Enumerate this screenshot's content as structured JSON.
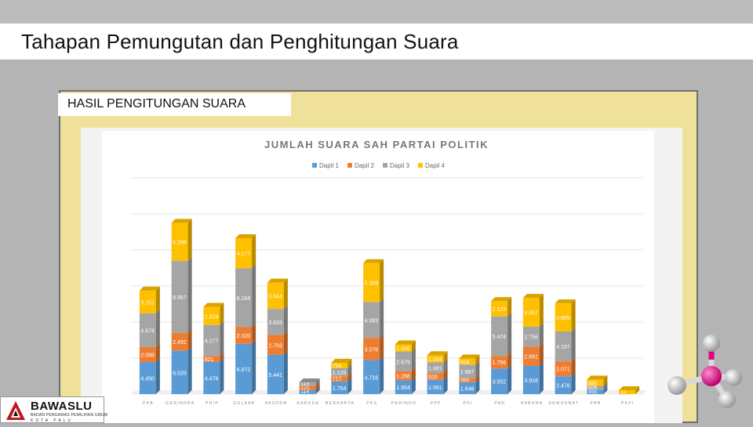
{
  "slide": {
    "title": "Tahapan Pemungutan dan Penghitungan Suara",
    "section_label": "HASIL PENGITUNGAN SUARA"
  },
  "logo": {
    "name": "BAWASLU",
    "subtitle": "BADAN PENGAWAS PEMILIHAN UMUM",
    "city": "KOTA PALU"
  },
  "colors": {
    "dapil1": "#5b9bd5",
    "dapil2": "#ed7d31",
    "dapil3": "#a5a5a5",
    "dapil4": "#ffc000",
    "panel": "#f0e19a"
  },
  "chart_data": {
    "type": "bar",
    "stacked": true,
    "style": "3d-stacked-column",
    "title": "JUMLAH SUARA SAH PARTAI POLITIK",
    "legend_position": "top",
    "grid": true,
    "categories": [
      "PKB",
      "GERINDRA",
      "PDIP",
      "GOLKAR",
      "NASDEM",
      "GARUDA",
      "BERKARYA",
      "PKS",
      "PERINDO",
      "PPP",
      "PSI",
      "PAN",
      "HANURA",
      "DEMOKRAT",
      "PBB",
      "PKPI"
    ],
    "category_labels": [
      "P K B",
      "G E R I N D R A",
      "P D I P",
      "G O L K A R",
      "N A S D E M",
      "G A R U D A",
      "B E R K A R Y A",
      "P K S",
      "P E R I N D O",
      "P P P",
      "P S I",
      "P A N",
      "H A N U R A",
      "D E M O K R A T",
      "P B B",
      "P K P I"
    ],
    "series": [
      {
        "name": "Dapil 1",
        "values": [
          4450,
          6020,
          4476,
          6972,
          5441,
          114,
          1754,
          4716,
          1904,
          1991,
          1646,
          3552,
          3916,
          2476,
          450,
          0
        ],
        "labels": [
          "4.450",
          "6.020",
          "4.476",
          "6.972",
          "5.441",
          "114",
          "1.754",
          "4.716",
          "1.904",
          "1.991",
          "1.646",
          "3.552",
          "3.916",
          "2.476",
          "450",
          ""
        ]
      },
      {
        "name": "Dapil 2",
        "values": [
          2088,
          2492,
          821,
          2320,
          2759,
          121,
          717,
          3076,
          1288,
          920,
          560,
          1756,
          2681,
          2071,
          0,
          0
        ],
        "labels": [
          "2.088",
          "2.492",
          "821",
          "2.320",
          "2.759",
          "121",
          "717",
          "3.076",
          "1.288",
          "920",
          "560",
          "1.756",
          "2.681",
          "2.071",
          "",
          ""
        ]
      },
      {
        "name": "Dapil 3",
        "values": [
          4674,
          9957,
          4277,
          8164,
          3628,
          119,
          1129,
          4993,
          2679,
          1481,
          1887,
          5474,
          2756,
          4157,
          606,
          0
        ],
        "labels": [
          "4.674",
          "9.957",
          "4.277",
          "8.164",
          "3.628",
          "119",
          "1.129",
          "4.993",
          "2.679",
          "1.481",
          "1.887",
          "5.474",
          "2.756",
          "4.157",
          "606",
          ""
        ]
      },
      {
        "name": "Dapil 4",
        "values": [
          3151,
          5298,
          2529,
          4177,
          3644,
          0,
          754,
          5388,
          1036,
          1004,
          858,
          2123,
          4007,
          3885,
          880,
          11
        ],
        "labels": [
          "3.151",
          "5.298",
          "2.529",
          "4.177",
          "3.644",
          "",
          "754",
          "5.388",
          "1.036",
          "1.004",
          "858",
          "2.123",
          "4.007",
          "3.885",
          "880",
          "11"
        ]
      }
    ],
    "ylim": [
      0,
      30000
    ]
  }
}
